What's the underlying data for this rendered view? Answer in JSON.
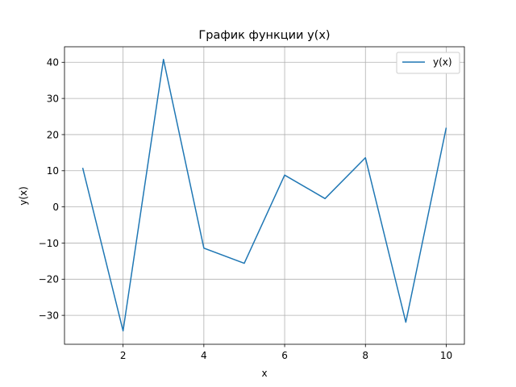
{
  "chart_data": {
    "type": "line",
    "title": "График функции y(x)",
    "xlabel": "x",
    "ylabel": "y(x)",
    "x": [
      1,
      2,
      3,
      4,
      5,
      6,
      7,
      8,
      9,
      10
    ],
    "series": [
      {
        "name": "y(x)",
        "color": "#1f77b4",
        "values": [
          10.8,
          -34.3,
          40.8,
          -11.4,
          -15.6,
          8.8,
          2.3,
          13.6,
          -31.9,
          21.9
        ]
      }
    ],
    "xlim": [
      0.55,
      10.45
    ],
    "ylim": [
      -38.0,
      44.3
    ],
    "xticks": [
      2,
      4,
      6,
      8,
      10
    ],
    "yticks": [
      -30,
      -20,
      -10,
      0,
      10,
      20,
      30,
      40
    ],
    "xtick_labels": [
      "2",
      "4",
      "6",
      "8",
      "10"
    ],
    "ytick_labels": [
      "−30",
      "−20",
      "−10",
      "0",
      "10",
      "20",
      "30",
      "40"
    ],
    "grid": true,
    "legend_position": "top-right"
  }
}
